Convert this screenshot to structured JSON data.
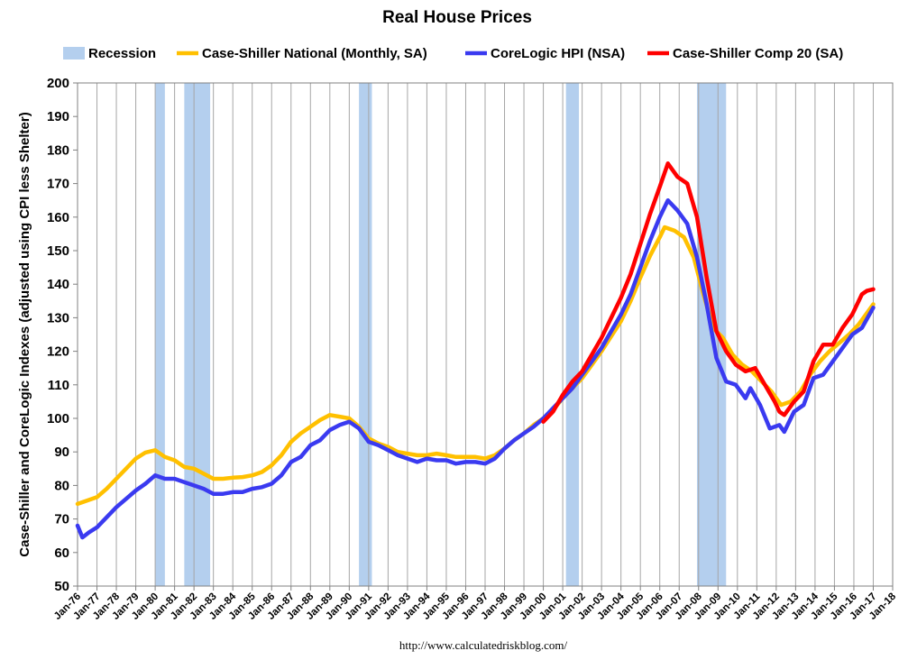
{
  "chart_data": {
    "type": "line",
    "title": "Real House Prices",
    "ylabel": "Case-Shiller and CoreLogic Indexes (adjusted using CPI less Shelter)",
    "xlabel": "",
    "source": "http://www.calculatedriskblog.com/",
    "ylim": [
      50,
      200
    ],
    "yticks": [
      50,
      60,
      70,
      80,
      90,
      100,
      110,
      120,
      130,
      140,
      150,
      160,
      170,
      180,
      190,
      200
    ],
    "xlim": [
      "1976-01",
      "2018-01"
    ],
    "xtick_labels": [
      "Jan-76",
      "Jan-77",
      "Jan-78",
      "Jan-79",
      "Jan-80",
      "Jan-81",
      "Jan-82",
      "Jan-83",
      "Jan-84",
      "Jan-85",
      "Jan-86",
      "Jan-87",
      "Jan-88",
      "Jan-89",
      "Jan-90",
      "Jan-91",
      "Jan-92",
      "Jan-93",
      "Jan-94",
      "Jan-95",
      "Jan-96",
      "Jan-97",
      "Jan-98",
      "Jan-99",
      "Jan-00",
      "Jan-01",
      "Jan-02",
      "Jan-03",
      "Jan-04",
      "Jan-05",
      "Jan-06",
      "Jan-07",
      "Jan-08",
      "Jan-09",
      "Jan-10",
      "Jan-11",
      "Jan-12",
      "Jan-13",
      "Jan-14",
      "Jan-15",
      "Jan-16",
      "Jan-17",
      "Jan-18"
    ],
    "grid": "vertical",
    "legend_position": "top",
    "recessions": [
      {
        "start": "1980-01",
        "end": "1980-07"
      },
      {
        "start": "1981-07",
        "end": "1982-11"
      },
      {
        "start": "1990-07",
        "end": "1991-03"
      },
      {
        "start": "2001-03",
        "end": "2001-11"
      },
      {
        "start": "2007-12",
        "end": "2009-06"
      }
    ],
    "legend": [
      {
        "name": "Recession",
        "color": "#b4cfee",
        "kind": "box"
      },
      {
        "name": "Case-Shiller National (Monthly, SA)",
        "color": "#ffc000",
        "kind": "line"
      },
      {
        "name": "CoreLogic HPI (NSA)",
        "color": "#3a3af0",
        "kind": "line"
      },
      {
        "name": "Case-Shiller Comp 20  (SA)",
        "color": "#ff0000",
        "kind": "line"
      }
    ],
    "series": [
      {
        "name": "Case-Shiller National (Monthly, SA)",
        "color": "#ffc000",
        "points": [
          [
            "1976-01",
            74.5
          ],
          [
            "1976-07",
            75.5
          ],
          [
            "1977-01",
            76.5
          ],
          [
            "1977-07",
            79
          ],
          [
            "1978-01",
            82
          ],
          [
            "1978-07",
            85
          ],
          [
            "1979-01",
            88
          ],
          [
            "1979-07",
            89.8
          ],
          [
            "1980-01",
            90.5
          ],
          [
            "1980-07",
            88.5
          ],
          [
            "1981-01",
            87.5
          ],
          [
            "1981-07",
            85.5
          ],
          [
            "1982-01",
            85
          ],
          [
            "1982-07",
            83.5
          ],
          [
            "1983-01",
            82
          ],
          [
            "1983-07",
            82
          ],
          [
            "1984-01",
            82.3
          ],
          [
            "1984-07",
            82.5
          ],
          [
            "1985-01",
            83
          ],
          [
            "1985-07",
            84
          ],
          [
            "1986-01",
            86
          ],
          [
            "1986-07",
            89
          ],
          [
            "1987-01",
            93
          ],
          [
            "1987-07",
            95.5
          ],
          [
            "1988-01",
            97.5
          ],
          [
            "1988-07",
            99.5
          ],
          [
            "1989-01",
            101
          ],
          [
            "1989-07",
            100.5
          ],
          [
            "1990-01",
            100
          ],
          [
            "1990-07",
            97.5
          ],
          [
            "1991-01",
            94
          ],
          [
            "1991-07",
            92.5
          ],
          [
            "1992-01",
            91.5
          ],
          [
            "1992-07",
            90
          ],
          [
            "1993-01",
            89.5
          ],
          [
            "1993-07",
            89
          ],
          [
            "1994-01",
            89
          ],
          [
            "1994-07",
            89.5
          ],
          [
            "1995-01",
            89
          ],
          [
            "1995-07",
            88.5
          ],
          [
            "1996-01",
            88.5
          ],
          [
            "1996-07",
            88.5
          ],
          [
            "1997-01",
            88
          ],
          [
            "1997-07",
            89
          ],
          [
            "1998-01",
            91
          ],
          [
            "1998-07",
            93.5
          ],
          [
            "1999-01",
            95.5
          ],
          [
            "1999-07",
            98
          ],
          [
            "2000-01",
            100
          ],
          [
            "2000-07",
            102.5
          ],
          [
            "2001-01",
            106
          ],
          [
            "2001-07",
            109
          ],
          [
            "2002-01",
            112
          ],
          [
            "2002-07",
            116
          ],
          [
            "2003-01",
            120
          ],
          [
            "2003-07",
            124.5
          ],
          [
            "2004-01",
            129
          ],
          [
            "2004-07",
            135
          ],
          [
            "2005-01",
            142
          ],
          [
            "2005-07",
            148.5
          ],
          [
            "2006-01",
            154
          ],
          [
            "2006-04",
            157
          ],
          [
            "2006-10",
            156
          ],
          [
            "2007-04",
            154
          ],
          [
            "2007-10",
            148
          ],
          [
            "2008-04",
            137
          ],
          [
            "2008-10",
            127
          ],
          [
            "2009-04",
            124
          ],
          [
            "2009-10",
            119
          ],
          [
            "2010-04",
            116
          ],
          [
            "2010-10",
            114
          ],
          [
            "2011-04",
            111
          ],
          [
            "2011-10",
            108
          ],
          [
            "2012-04",
            104
          ],
          [
            "2012-10",
            105
          ],
          [
            "2013-04",
            108
          ],
          [
            "2013-10",
            113
          ],
          [
            "2014-04",
            117
          ],
          [
            "2014-10",
            120
          ],
          [
            "2015-04",
            122.5
          ],
          [
            "2015-10",
            125
          ],
          [
            "2016-04",
            128
          ],
          [
            "2016-10",
            132
          ],
          [
            "2017-01",
            134
          ]
        ]
      },
      {
        "name": "CoreLogic HPI (NSA)",
        "color": "#3a3af0",
        "points": [
          [
            "1976-01",
            68
          ],
          [
            "1976-04",
            64.5
          ],
          [
            "1976-08",
            66
          ],
          [
            "1977-01",
            67.5
          ],
          [
            "1977-07",
            70.5
          ],
          [
            "1978-01",
            73.5
          ],
          [
            "1978-07",
            76
          ],
          [
            "1979-01",
            78.5
          ],
          [
            "1979-07",
            80.5
          ],
          [
            "1980-01",
            83
          ],
          [
            "1980-07",
            82
          ],
          [
            "1981-01",
            82
          ],
          [
            "1981-07",
            81
          ],
          [
            "1982-01",
            80
          ],
          [
            "1982-07",
            79
          ],
          [
            "1983-01",
            77.5
          ],
          [
            "1983-07",
            77.5
          ],
          [
            "1984-01",
            78
          ],
          [
            "1984-07",
            78
          ],
          [
            "1985-01",
            79
          ],
          [
            "1985-07",
            79.5
          ],
          [
            "1986-01",
            80.5
          ],
          [
            "1986-07",
            83
          ],
          [
            "1987-01",
            87
          ],
          [
            "1987-07",
            88.5
          ],
          [
            "1988-01",
            92
          ],
          [
            "1988-07",
            93.5
          ],
          [
            "1989-01",
            96.5
          ],
          [
            "1989-07",
            98
          ],
          [
            "1990-01",
            99
          ],
          [
            "1990-07",
            97
          ],
          [
            "1991-01",
            93
          ],
          [
            "1991-07",
            92
          ],
          [
            "1992-01",
            90.5
          ],
          [
            "1992-07",
            89
          ],
          [
            "1993-01",
            88
          ],
          [
            "1993-07",
            87
          ],
          [
            "1994-01",
            88
          ],
          [
            "1994-07",
            87.5
          ],
          [
            "1995-01",
            87.5
          ],
          [
            "1995-07",
            86.5
          ],
          [
            "1996-01",
            87
          ],
          [
            "1996-07",
            87
          ],
          [
            "1997-01",
            86.5
          ],
          [
            "1997-07",
            88
          ],
          [
            "1998-01",
            91
          ],
          [
            "1998-07",
            93.5
          ],
          [
            "1999-01",
            95.5
          ],
          [
            "1999-07",
            97.5
          ],
          [
            "2000-01",
            100
          ],
          [
            "2000-07",
            103
          ],
          [
            "2001-01",
            106
          ],
          [
            "2001-07",
            109
          ],
          [
            "2002-01",
            113
          ],
          [
            "2002-07",
            117
          ],
          [
            "2003-01",
            121
          ],
          [
            "2003-07",
            126
          ],
          [
            "2004-01",
            131
          ],
          [
            "2004-07",
            137
          ],
          [
            "2005-01",
            145
          ],
          [
            "2005-07",
            153
          ],
          [
            "2006-01",
            160
          ],
          [
            "2006-06",
            165
          ],
          [
            "2006-12",
            162
          ],
          [
            "2007-06",
            158
          ],
          [
            "2007-12",
            148
          ],
          [
            "2008-06",
            134
          ],
          [
            "2008-12",
            118
          ],
          [
            "2009-06",
            111
          ],
          [
            "2009-12",
            110
          ],
          [
            "2010-06",
            106
          ],
          [
            "2010-09",
            109
          ],
          [
            "2011-03",
            104
          ],
          [
            "2011-09",
            97
          ],
          [
            "2012-03",
            98
          ],
          [
            "2012-06",
            96
          ],
          [
            "2012-12",
            102
          ],
          [
            "2013-06",
            104
          ],
          [
            "2013-12",
            112
          ],
          [
            "2014-06",
            113
          ],
          [
            "2014-12",
            117
          ],
          [
            "2015-06",
            121
          ],
          [
            "2015-12",
            125
          ],
          [
            "2016-06",
            127
          ],
          [
            "2017-01",
            133
          ]
        ]
      },
      {
        "name": "Case-Shiller Comp 20  (SA)",
        "color": "#ff0000",
        "points": [
          [
            "2000-01",
            99
          ],
          [
            "2000-07",
            102
          ],
          [
            "2001-01",
            107
          ],
          [
            "2001-07",
            111
          ],
          [
            "2002-01",
            114
          ],
          [
            "2002-07",
            119
          ],
          [
            "2003-01",
            124
          ],
          [
            "2003-07",
            130
          ],
          [
            "2004-01",
            136
          ],
          [
            "2004-07",
            143
          ],
          [
            "2005-01",
            152
          ],
          [
            "2005-07",
            161
          ],
          [
            "2006-01",
            169
          ],
          [
            "2006-06",
            176
          ],
          [
            "2006-12",
            172
          ],
          [
            "2007-06",
            170
          ],
          [
            "2007-12",
            160
          ],
          [
            "2008-06",
            142
          ],
          [
            "2008-12",
            126
          ],
          [
            "2009-06",
            120
          ],
          [
            "2009-12",
            116
          ],
          [
            "2010-06",
            114
          ],
          [
            "2010-12",
            115
          ],
          [
            "2011-06",
            110
          ],
          [
            "2011-12",
            105
          ],
          [
            "2012-03",
            102
          ],
          [
            "2012-06",
            101
          ],
          [
            "2012-12",
            105
          ],
          [
            "2013-06",
            108
          ],
          [
            "2013-12",
            117
          ],
          [
            "2014-06",
            122
          ],
          [
            "2014-12",
            122
          ],
          [
            "2015-06",
            127
          ],
          [
            "2015-12",
            131
          ],
          [
            "2016-06",
            137
          ],
          [
            "2016-09",
            138
          ],
          [
            "2017-01",
            138.5
          ]
        ]
      }
    ]
  }
}
